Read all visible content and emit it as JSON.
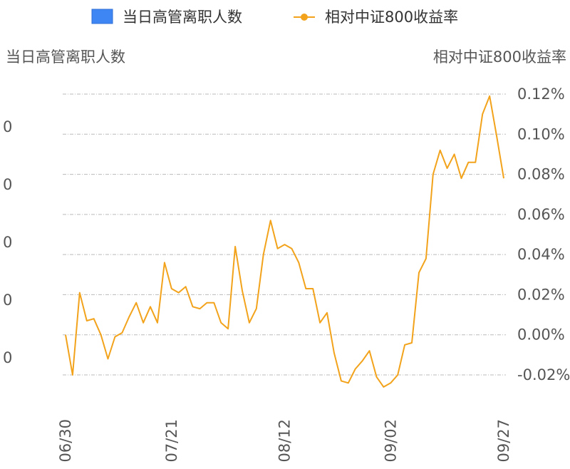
{
  "chart_data": {
    "type": "bar-line",
    "legend": {
      "placement": "top-center",
      "items": [
        {
          "label": "当日高管离职人数",
          "kind": "bar",
          "color": "#3f86f5"
        },
        {
          "label": "相对中证800收益率",
          "kind": "line",
          "color": "#f2a31b"
        }
      ]
    },
    "left_axis": {
      "title": "当日高管离职人数",
      "tick_labels": [
        "0",
        "0",
        "0",
        "0",
        "0"
      ]
    },
    "right_axis": {
      "title": "相对中证800收益率",
      "ylim": [
        -0.02,
        0.12
      ],
      "tick_labels": [
        "0.12%",
        "0.10%",
        "0.08%",
        "0.06%",
        "0.04%",
        "0.02%",
        "0.00%",
        "-0.02%"
      ]
    },
    "x_ticks": [
      {
        "label": "06/30",
        "index": 0
      },
      {
        "label": "07/21",
        "index": 15
      },
      {
        "label": "08/12",
        "index": 31
      },
      {
        "label": "09/02",
        "index": 46
      },
      {
        "label": "09/27",
        "index": 62
      }
    ],
    "grid": true,
    "series": [
      {
        "name": "当日高管离职人数",
        "kind": "bar",
        "axis": "left",
        "color": "#3f86f5",
        "values": []
      },
      {
        "name": "相对中证800收益率",
        "kind": "line",
        "axis": "right",
        "unit": "%",
        "color": "#f2a31b",
        "x": [
          0,
          1,
          2,
          3,
          4,
          5,
          6,
          7,
          8,
          9,
          10,
          11,
          12,
          13,
          14,
          15,
          16,
          17,
          18,
          19,
          20,
          21,
          22,
          23,
          24,
          25,
          26,
          27,
          28,
          29,
          30,
          31,
          32,
          33,
          34,
          35,
          36,
          37,
          38,
          39,
          40,
          41,
          42,
          43,
          44,
          45,
          46,
          47,
          48,
          49,
          50,
          51,
          52,
          53,
          54,
          55,
          56,
          57,
          58,
          59,
          60,
          61,
          62
        ],
        "values": [
          0.0,
          -0.02,
          0.021,
          0.007,
          0.008,
          0.0,
          -0.012,
          -0.001,
          0.001,
          0.009,
          0.016,
          0.006,
          0.014,
          0.006,
          0.036,
          0.023,
          0.021,
          0.024,
          0.014,
          0.013,
          0.016,
          0.016,
          0.006,
          0.003,
          0.044,
          0.022,
          0.006,
          0.013,
          0.04,
          0.057,
          0.043,
          0.045,
          0.043,
          0.036,
          0.023,
          0.023,
          0.006,
          0.011,
          -0.009,
          -0.023,
          -0.024,
          -0.017,
          -0.013,
          -0.008,
          -0.021,
          -0.026,
          -0.024,
          -0.02,
          -0.005,
          -0.004,
          0.031,
          0.038,
          0.08,
          0.092,
          0.083,
          0.09,
          0.078,
          0.086,
          0.086,
          0.11,
          0.119,
          0.099,
          0.078
        ]
      }
    ]
  }
}
